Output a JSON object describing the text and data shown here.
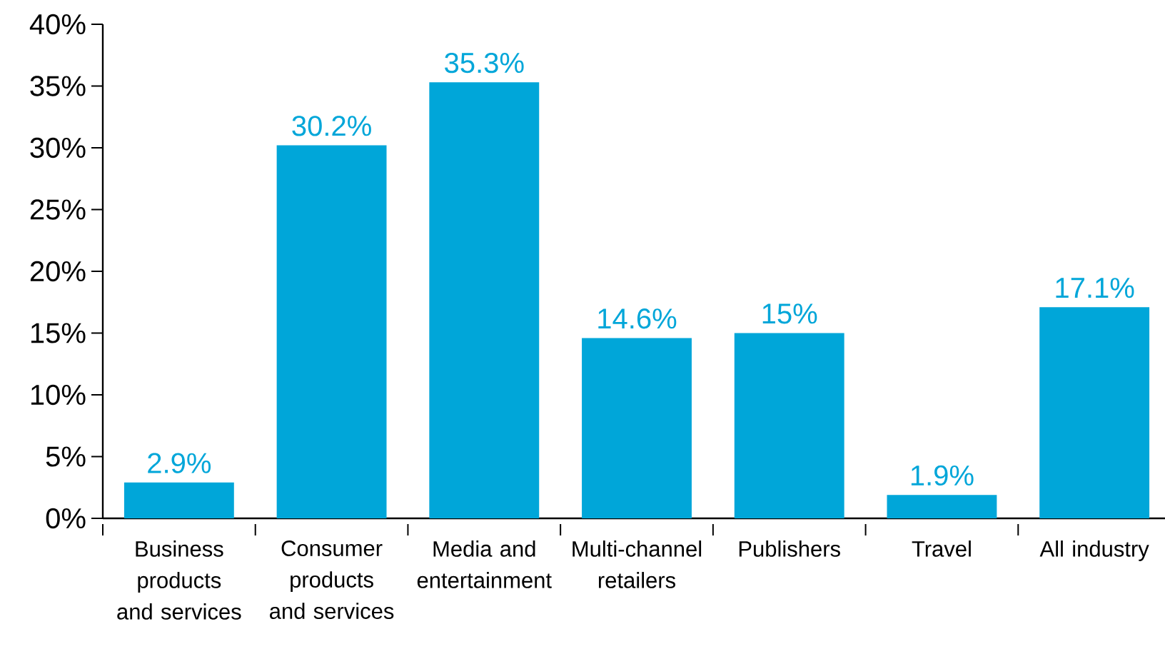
{
  "chart_data": {
    "type": "bar",
    "categories": [
      "Business products and services",
      "Consumer products and services",
      "Media and entertainment",
      "Multi-channel retailers",
      "Publishers",
      "Travel",
      "All industry"
    ],
    "values": [
      2.9,
      30.2,
      35.3,
      14.6,
      15,
      1.9,
      17.1
    ],
    "value_labels": [
      "2.9%",
      "30.2%",
      "35.3%",
      "14.6%",
      "15%",
      "1.9%",
      "17.1%"
    ],
    "color": "#00a6d9",
    "ylim": [
      0,
      40
    ],
    "yticks": [
      {
        "value": 0,
        "label": "0%"
      },
      {
        "value": 5,
        "label": "5%"
      },
      {
        "value": 10,
        "label": "10%"
      },
      {
        "value": 15,
        "label": "15%"
      },
      {
        "value": 20,
        "label": "20%"
      },
      {
        "value": 25,
        "label": "25%"
      },
      {
        "value": 30,
        "label": "30%"
      },
      {
        "value": 35,
        "label": "35%"
      },
      {
        "value": 40,
        "label": "40%"
      }
    ]
  }
}
